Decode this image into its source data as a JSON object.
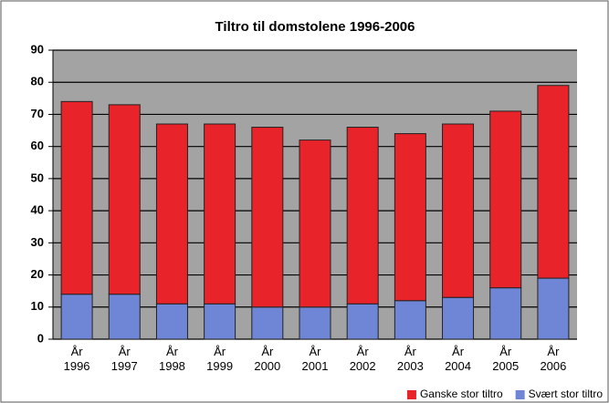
{
  "chart_data": {
    "type": "bar",
    "stacked": true,
    "title": "Tiltro til domstolene 1996-2006",
    "categories": [
      "År 1996",
      "År 1997",
      "År 1998",
      "År 1999",
      "År 2000",
      "År 2001",
      "År 2002",
      "År 2003",
      "År 2004",
      "År 2005",
      "År 2006"
    ],
    "series": [
      {
        "name": "Svært stor tiltro",
        "color": "#6f86d6",
        "values": [
          14,
          14,
          11,
          11,
          10,
          10,
          11,
          12,
          13,
          16,
          19
        ]
      },
      {
        "name": "Ganske stor tiltro",
        "color": "#e8232a",
        "values": [
          60,
          59,
          56,
          56,
          56,
          52,
          55,
          52,
          54,
          55,
          60
        ]
      }
    ],
    "ylim": [
      0,
      90
    ],
    "yticks": [
      0,
      10,
      20,
      30,
      40,
      50,
      60,
      70,
      80,
      90
    ],
    "grid": true,
    "legend": "bottom-right"
  }
}
